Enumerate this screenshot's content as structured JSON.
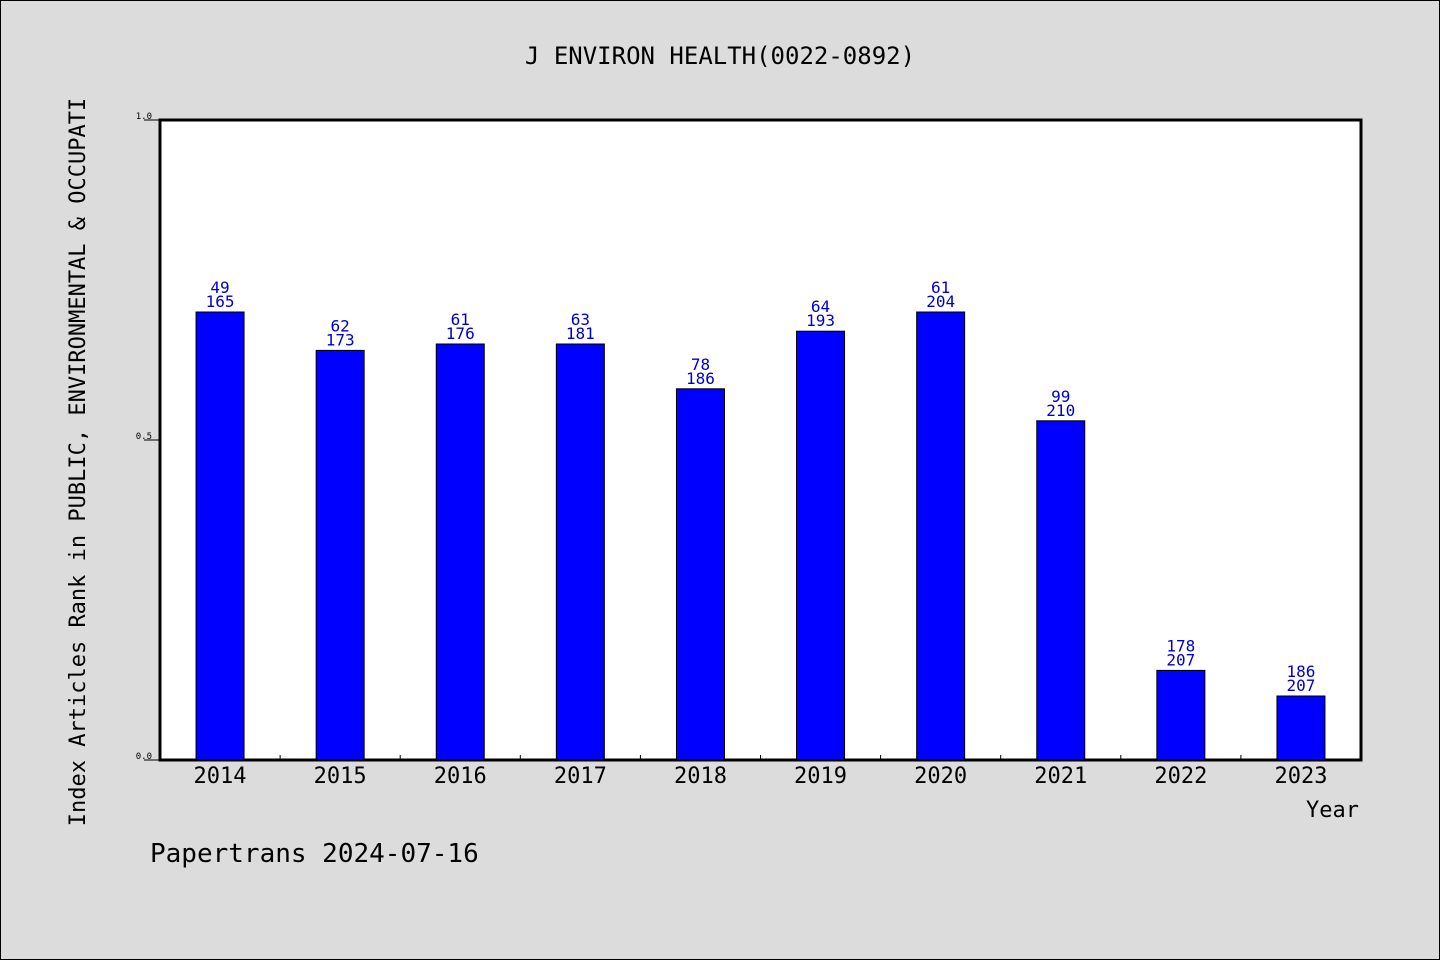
{
  "chart_data": {
    "type": "bar",
    "title": "J ENVIRON HEALTH(0022-0892)",
    "xlabel": "Year",
    "ylabel": "Index Articles Rank in PUBLIC, ENVIRONMENTAL & OCCUPATI",
    "ylim": [
      0.0,
      1.0
    ],
    "yticks": [
      "0.0",
      "0.5",
      "1.0"
    ],
    "categories": [
      "2014",
      "2015",
      "2016",
      "2017",
      "2018",
      "2019",
      "2020",
      "2021",
      "2022",
      "2023"
    ],
    "values": [
      0.7,
      0.64,
      0.65,
      0.65,
      0.58,
      0.67,
      0.7,
      0.53,
      0.14,
      0.1
    ],
    "rank": [
      "49",
      "62",
      "61",
      "63",
      "78",
      "64",
      "61",
      "99",
      "178",
      "186"
    ],
    "total": [
      "165",
      "173",
      "176",
      "181",
      "186",
      "193",
      "204",
      "210",
      "207",
      "207"
    ],
    "bar_color": "#0000ff",
    "label_color": "#0000cc",
    "grid": false
  },
  "footer": "Papertrans 2024-07-16"
}
